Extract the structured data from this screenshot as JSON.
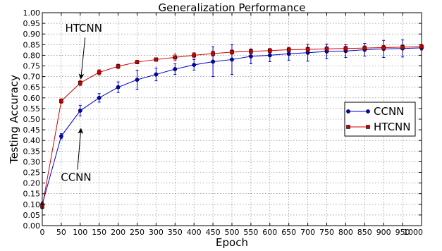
{
  "chart_data": {
    "type": "line",
    "title": "Generalization Performance",
    "xlabel": "Epoch",
    "ylabel": "Testing Accuracy",
    "xlim": [
      0,
      1000
    ],
    "ylim": [
      0.0,
      1.0
    ],
    "xticks": [
      0,
      50,
      100,
      150,
      200,
      250,
      300,
      350,
      400,
      450,
      500,
      550,
      600,
      650,
      700,
      750,
      800,
      850,
      900,
      950,
      1000
    ],
    "yticks": [
      "0.00",
      "0.05",
      "0.10",
      "0.15",
      "0.20",
      "0.25",
      "0.30",
      "0.35",
      "0.40",
      "0.45",
      "0.50",
      "0.55",
      "0.60",
      "0.65",
      "0.70",
      "0.75",
      "0.80",
      "0.85",
      "0.90",
      "0.95",
      "1.00"
    ],
    "grid": true,
    "legend_position": "middle-right",
    "x": [
      0,
      50,
      100,
      150,
      200,
      250,
      300,
      350,
      400,
      450,
      500,
      550,
      600,
      650,
      700,
      750,
      800,
      850,
      900,
      950,
      1000
    ],
    "series": [
      {
        "name": "CCNN",
        "color": "#0000cc",
        "marker": "circle",
        "values": [
          0.1,
          0.42,
          0.54,
          0.6,
          0.65,
          0.685,
          0.71,
          0.735,
          0.755,
          0.77,
          0.78,
          0.795,
          0.8,
          0.807,
          0.812,
          0.818,
          0.82,
          0.826,
          0.83,
          0.832,
          0.835
        ],
        "errors": [
          0.01,
          0.012,
          0.025,
          0.02,
          0.025,
          0.045,
          0.03,
          0.025,
          0.025,
          0.07,
          0.07,
          0.035,
          0.03,
          0.03,
          0.04,
          0.035,
          0.03,
          0.03,
          0.04,
          0.04,
          0.01
        ]
      },
      {
        "name": "HTCNN",
        "color": "#cc0000",
        "marker": "square",
        "values": [
          0.09,
          0.585,
          0.67,
          0.72,
          0.748,
          0.768,
          0.78,
          0.79,
          0.8,
          0.808,
          0.815,
          0.818,
          0.822,
          0.826,
          0.828,
          0.83,
          0.832,
          0.834,
          0.836,
          0.838,
          0.84
        ],
        "errors": [
          0.01,
          0.01,
          0.012,
          0.012,
          0.01,
          0.008,
          0.008,
          0.015,
          0.012,
          0.012,
          0.01,
          0.01,
          0.01,
          0.01,
          0.01,
          0.01,
          0.01,
          0.01,
          0.01,
          0.01,
          0.01
        ]
      }
    ],
    "annotations": [
      {
        "text": "HTCNN",
        "point_x": 100,
        "point_y": 0.69,
        "label_x": 150,
        "label_y": 0.91
      },
      {
        "text": "CCNN",
        "point_x": 100,
        "point_y": 0.455,
        "label_x": 130,
        "label_y": 0.21
      }
    ]
  }
}
